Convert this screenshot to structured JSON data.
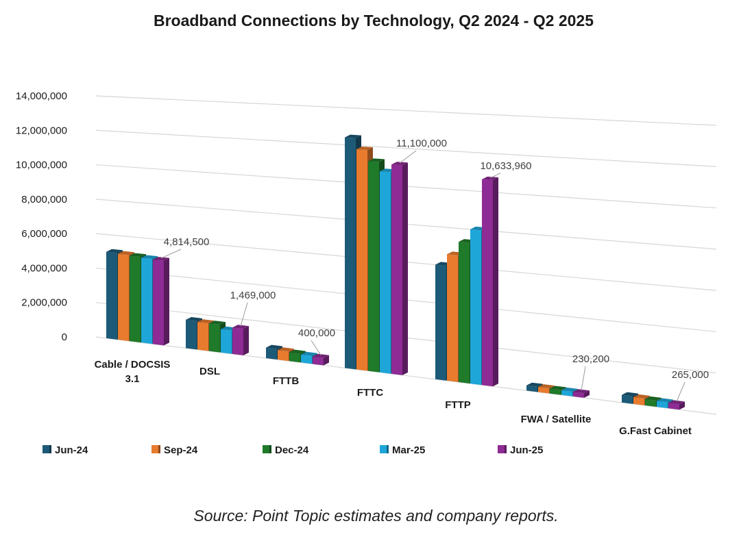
{
  "chart_data": {
    "type": "bar",
    "title": "Broadband Connections by Technology, Q2 2024 - Q2 2025",
    "categories": [
      [
        "Cable / DOCSIS",
        "3.1"
      ],
      [
        "DSL"
      ],
      [
        "FTTB"
      ],
      [
        "FTTC"
      ],
      [
        "FTTP"
      ],
      [
        "FWA / Satellite"
      ],
      [
        "G.Fast Cabinet"
      ]
    ],
    "series": [
      {
        "name": "Jun-24",
        "color": "#1d5a78",
        "values": [
          5000000,
          1600000,
          580000,
          12400000,
          6000000,
          270000,
          380000
        ]
      },
      {
        "name": "Sep-24",
        "color": "#e87b2e",
        "values": [
          4950000,
          1550000,
          520000,
          11800000,
          6600000,
          260000,
          340000
        ]
      },
      {
        "name": "Dec-24",
        "color": "#1f7a2a",
        "values": [
          4900000,
          1550000,
          470000,
          11200000,
          7300000,
          250000,
          310000
        ]
      },
      {
        "name": "Mar-25",
        "color": "#1ea6d9",
        "values": [
          4850000,
          1300000,
          430000,
          10700000,
          8000000,
          240000,
          290000
        ]
      },
      {
        "name": "Jun-25",
        "color": "#8e2b94",
        "values": [
          4814500,
          1469000,
          400000,
          11100000,
          10633960,
          230200,
          265000
        ]
      }
    ],
    "data_labels": [
      "4,814,500",
      "1,469,000",
      "400,000",
      "11,100,000",
      "10,633,960",
      "230,200",
      "265,000"
    ],
    "y_ticks": [
      "0",
      "2,000,000",
      "4,000,000",
      "6,000,000",
      "8,000,000",
      "10,000,000",
      "12,000,000",
      "14,000,000"
    ],
    "ylim": [
      0,
      14000000
    ],
    "grid": true,
    "legend_position": "bottom",
    "xlabel": "",
    "ylabel": ""
  },
  "source_note": "Source:  Point Topic estimates and company reports."
}
